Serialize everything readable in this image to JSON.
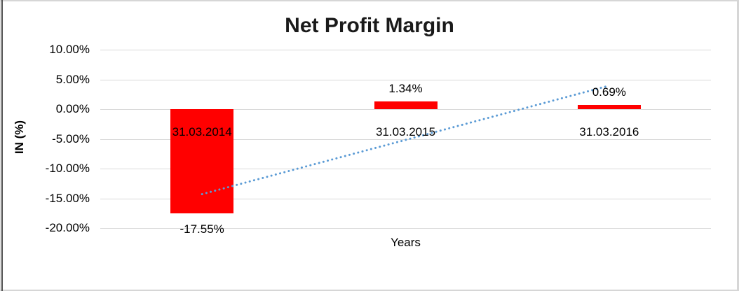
{
  "chart_data": {
    "type": "bar",
    "title": "Net Profit Margin",
    "xlabel": "Years",
    "ylabel": "IN (%)",
    "categories": [
      "31.03.2014",
      "31.03.2015",
      "31.03.2016"
    ],
    "values": [
      -17.55,
      1.34,
      0.69
    ],
    "data_labels": [
      "-17.55%",
      "1.34%",
      "0.69%"
    ],
    "ylim": [
      -20,
      10
    ],
    "ytick_step": 5,
    "ytick_labels": [
      "10.00%",
      "5.00%",
      "0.00%",
      "-5.00%",
      "-10.00%",
      "-15.00%",
      "-20.00%"
    ],
    "grid": true,
    "legend": "none",
    "bar_color": "#ff0000",
    "gridline_color": "#d9d9d9",
    "text_color": "#000000",
    "trendline": {
      "type": "linear",
      "style": "dotted",
      "color": "#5b9bd5",
      "start_value": -14.3,
      "end_value": 3.95
    }
  }
}
